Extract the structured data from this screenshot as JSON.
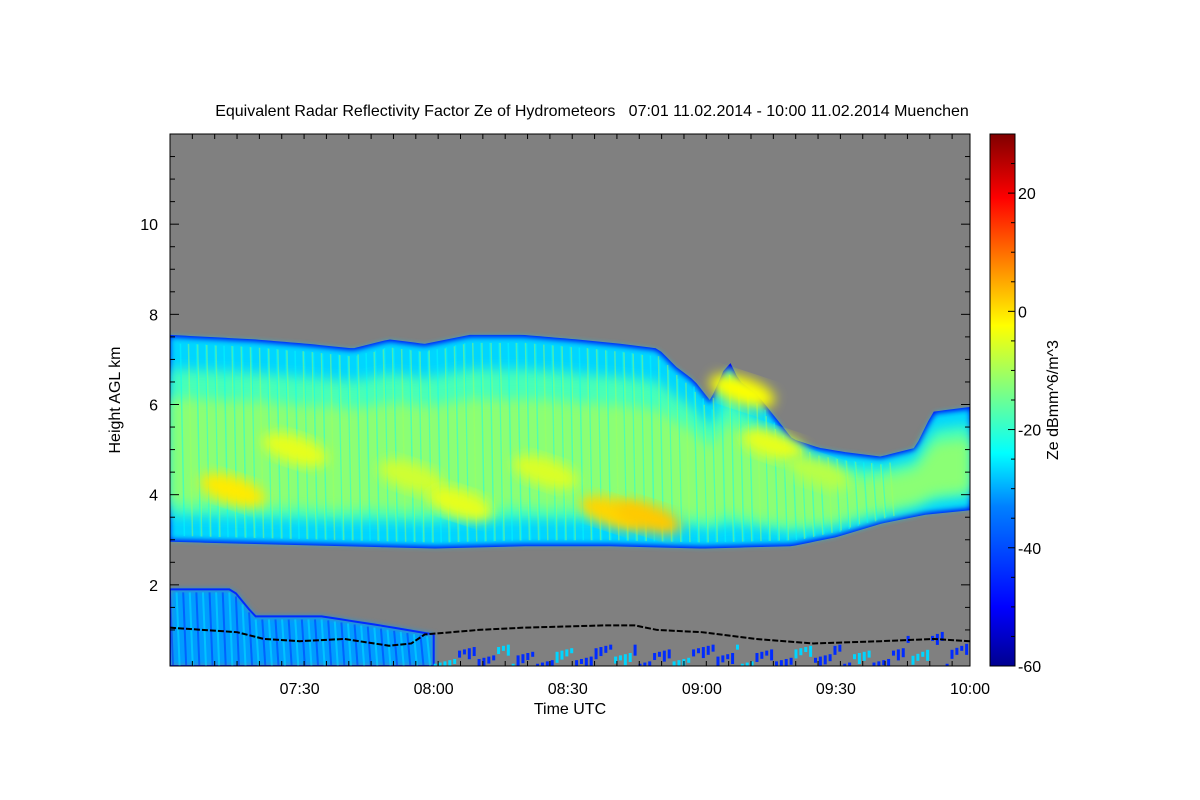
{
  "chart_data": {
    "type": "heatmap",
    "title": "Equivalent Radar Reflectivity Factor Ze of Hydrometeors   07:01 11.02.2014 - 10:00 11.02.2014 Muenchen",
    "xlabel": "Time UTC",
    "ylabel": "Height AGL km",
    "colorbar_label": "Ze dBmm^6/m^3",
    "x_range_min": [
      421,
      600
    ],
    "ylim": [
      0.2,
      12.0
    ],
    "zlim": [
      -60,
      30
    ],
    "x_ticks": [
      {
        "t": 450,
        "label": "07:30"
      },
      {
        "t": 480,
        "label": "08:00"
      },
      {
        "t": 510,
        "label": "08:30"
      },
      {
        "t": 540,
        "label": "09:00"
      },
      {
        "t": 570,
        "label": "09:30"
      },
      {
        "t": 600,
        "label": "10:00"
      }
    ],
    "y_ticks": [
      {
        "v": 2,
        "label": "2"
      },
      {
        "v": 4,
        "label": "4"
      },
      {
        "v": 6,
        "label": "6"
      },
      {
        "v": 8,
        "label": "8"
      },
      {
        "v": 10,
        "label": "10"
      }
    ],
    "colorbar_ticks": [
      {
        "v": 20,
        "label": "20"
      },
      {
        "v": 0,
        "label": "0"
      },
      {
        "v": -20,
        "label": "-20"
      },
      {
        "v": -40,
        "label": "-40"
      },
      {
        "v": -60,
        "label": "-60"
      }
    ],
    "no_data_color": "#808080",
    "colormap": [
      "#00008f",
      "#0000ff",
      "#0080ff",
      "#00ffff",
      "#80ff80",
      "#ffff00",
      "#ff8000",
      "#ff0000",
      "#800000"
    ],
    "upper_cloud": {
      "top_km": [
        [
          421,
          7.5
        ],
        [
          440,
          7.4
        ],
        [
          452,
          7.3
        ],
        [
          462,
          7.2
        ],
        [
          470,
          7.4
        ],
        [
          478,
          7.3
        ],
        [
          488,
          7.5
        ],
        [
          500,
          7.5
        ],
        [
          512,
          7.4
        ],
        [
          522,
          7.3
        ],
        [
          530,
          7.2
        ],
        [
          534,
          6.8
        ],
        [
          538,
          6.5
        ],
        [
          542,
          6.0
        ],
        [
          546,
          6.9
        ],
        [
          548,
          6.5
        ],
        [
          552,
          6.2
        ],
        [
          556,
          5.7
        ],
        [
          560,
          5.2
        ],
        [
          566,
          5.0
        ],
        [
          572,
          4.9
        ],
        [
          580,
          4.8
        ],
        [
          588,
          5.0
        ],
        [
          592,
          5.8
        ],
        [
          600,
          5.9
        ]
      ],
      "base_km": [
        [
          421,
          3.0
        ],
        [
          440,
          2.95
        ],
        [
          460,
          2.9
        ],
        [
          480,
          2.85
        ],
        [
          500,
          2.9
        ],
        [
          520,
          2.9
        ],
        [
          540,
          2.85
        ],
        [
          560,
          2.9
        ],
        [
          570,
          3.1
        ],
        [
          580,
          3.4
        ],
        [
          590,
          3.6
        ],
        [
          600,
          3.7
        ]
      ],
      "cores": [
        {
          "t": 435,
          "h": 4.1,
          "ze": -2
        },
        {
          "t": 449,
          "h": 5.0,
          "ze": -6
        },
        {
          "t": 475,
          "h": 4.4,
          "ze": -8
        },
        {
          "t": 486,
          "h": 3.8,
          "ze": -6
        },
        {
          "t": 505,
          "h": 4.5,
          "ze": -7
        },
        {
          "t": 520,
          "h": 3.6,
          "ze": 0
        },
        {
          "t": 528,
          "h": 3.5,
          "ze": 1
        },
        {
          "t": 549,
          "h": 6.3,
          "ze": -4
        },
        {
          "t": 556,
          "h": 5.1,
          "ze": -6
        },
        {
          "t": 566,
          "h": 4.5,
          "ze": -10
        }
      ]
    },
    "lower_echo": {
      "top_km": [
        [
          421,
          1.9
        ],
        [
          435,
          1.9
        ],
        [
          440,
          1.3
        ],
        [
          455,
          1.3
        ],
        [
          468,
          1.1
        ],
        [
          480,
          0.9
        ]
      ],
      "ze": -35
    },
    "cloud_base_line_km": [
      [
        421,
        1.05
      ],
      [
        436,
        0.95
      ],
      [
        442,
        0.8
      ],
      [
        450,
        0.75
      ],
      [
        460,
        0.8
      ],
      [
        470,
        0.65
      ],
      [
        475,
        0.7
      ],
      [
        478,
        0.9
      ],
      [
        490,
        1.0
      ],
      [
        500,
        1.05
      ],
      [
        518,
        1.1
      ],
      [
        525,
        1.1
      ],
      [
        530,
        1.0
      ],
      [
        540,
        0.95
      ],
      [
        552,
        0.8
      ],
      [
        565,
        0.7
      ],
      [
        580,
        0.75
      ],
      [
        592,
        0.8
      ],
      [
        600,
        0.75
      ]
    ],
    "grid": false,
    "legend": "right"
  }
}
